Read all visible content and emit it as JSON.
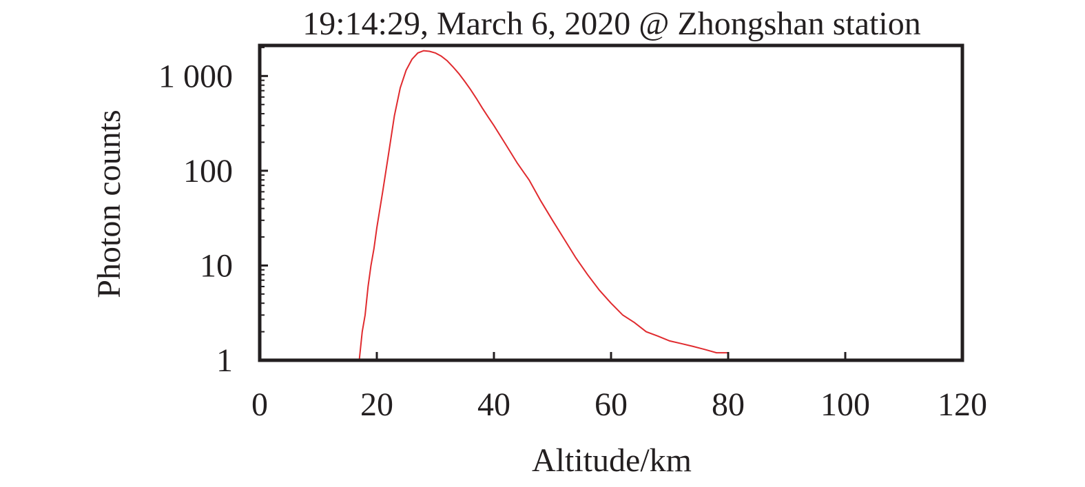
{
  "chart_data": {
    "type": "line",
    "title": "19:14:29, March 6, 2020 @ Zhongshan station",
    "xlabel": "Altitude/km",
    "ylabel": "Photon counts",
    "x_scale": "linear",
    "y_scale": "log",
    "xlim": [
      0,
      120
    ],
    "ylim": [
      1,
      2100
    ],
    "x_ticks": [
      0,
      20,
      40,
      60,
      80,
      100,
      120
    ],
    "x_tick_labels": [
      "0",
      "20",
      "40",
      "60",
      "80",
      "100",
      "120"
    ],
    "y_ticks": [
      1,
      10,
      100,
      1000
    ],
    "y_tick_labels": [
      "1",
      "10",
      "100",
      "1 000"
    ],
    "grid": false,
    "legend": "none",
    "line_color": "#e02a2e",
    "series": [
      {
        "x": [
          17.0,
          17.5,
          18.0,
          18.5,
          19.0,
          19.5,
          20.0,
          21.0,
          22.0,
          23.0,
          24.0,
          25.0,
          26.0,
          27.0,
          28.0,
          29.0,
          30.0,
          31.0,
          32.0,
          33.0,
          34.0,
          35.0,
          36.0,
          37.0,
          38.0,
          39.0,
          40.0,
          42.0,
          44.0,
          46.0,
          48.0,
          50.0,
          52.0,
          54.0,
          56.0,
          58.0,
          60.0,
          62.0,
          64.0,
          66.0,
          68.0,
          70.0,
          72.0,
          74.0,
          76.0,
          78.0,
          80.0
        ],
        "y": [
          1,
          2,
          3,
          6,
          10,
          15,
          25,
          60,
          150,
          380,
          750,
          1150,
          1500,
          1750,
          1850,
          1820,
          1750,
          1620,
          1450,
          1250,
          1060,
          880,
          720,
          580,
          460,
          370,
          300,
          190,
          120,
          80,
          48,
          30,
          19,
          12,
          8,
          5.5,
          4,
          3,
          2.5,
          2,
          1.8,
          1.6,
          1.5,
          1.4,
          1.3,
          1.2,
          1.2
        ]
      }
    ]
  }
}
